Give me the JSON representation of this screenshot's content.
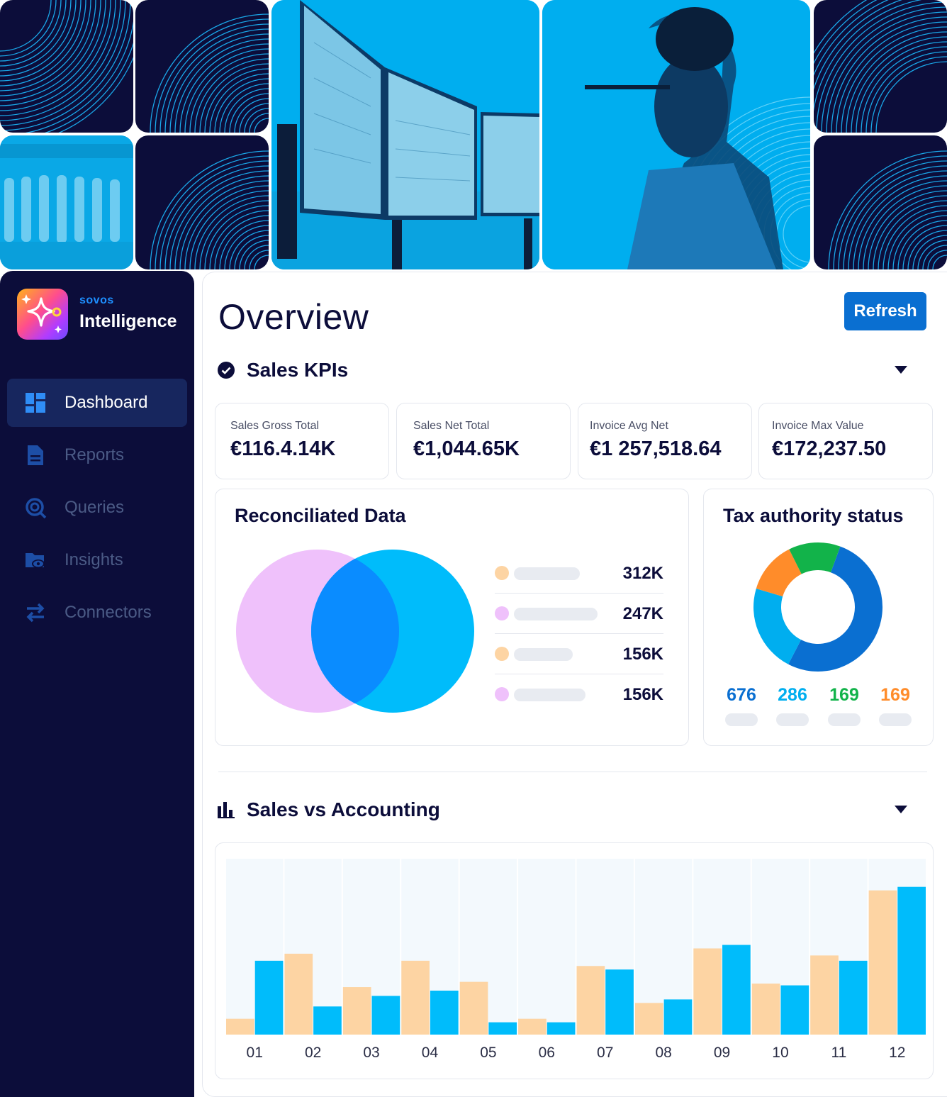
{
  "brand": {
    "small": "sovos",
    "name": "Intelligence"
  },
  "sidebar": {
    "items": [
      {
        "label": "Dashboard",
        "icon": "dashboard-icon",
        "active": true
      },
      {
        "label": "Reports",
        "icon": "document-icon",
        "active": false
      },
      {
        "label": "Queries",
        "icon": "search-icon",
        "active": false
      },
      {
        "label": "Insights",
        "icon": "folder-eye-icon",
        "active": false
      },
      {
        "label": "Connectors",
        "icon": "swap-arrows-icon",
        "active": false
      }
    ]
  },
  "header": {
    "title": "Overview",
    "refresh_label": "Refresh"
  },
  "sales_kpis": {
    "title": "Sales KPIs",
    "cards": [
      {
        "label": "Sales Gross Total",
        "value": "€116.4.14K"
      },
      {
        "label": "Sales Net Total",
        "value": "€1,044.65K"
      },
      {
        "label": "Invoice Avg Net",
        "value": "€1 257,518.64"
      },
      {
        "label": "Invoice Max Value",
        "value": "€172,237.50"
      }
    ]
  },
  "reconciliated": {
    "title": "Reconciliated Data",
    "legend": [
      {
        "color": "#fdd4a3",
        "value": "312K",
        "bar": 0.74
      },
      {
        "color": "#efc1fb",
        "value": "247K",
        "bar": 0.94
      },
      {
        "color": "#fdd4a3",
        "value": "156K",
        "bar": 0.66
      },
      {
        "color": "#efc1fb",
        "value": "156K",
        "bar": 0.8
      }
    ]
  },
  "tax_status": {
    "title": "Tax authority status",
    "values": [
      {
        "value": "676",
        "color": "#0a6fd1"
      },
      {
        "value": "286",
        "color": "#00aeef"
      },
      {
        "value": "169",
        "color": "#12b34a"
      },
      {
        "value": "169",
        "color": "#ff8c2a"
      }
    ]
  },
  "sales_vs_accounting": {
    "title": "Sales vs Accounting"
  },
  "colors": {
    "navy": "#0c0d3a",
    "accent": "#0a6fd1",
    "cyan": "#00aeef",
    "peach": "#fdd4a3",
    "lilac": "#efc1fb"
  },
  "chart_data": {
    "type": "bar",
    "categories": [
      "01",
      "02",
      "03",
      "04",
      "05",
      "06",
      "07",
      "08",
      "09",
      "10",
      "11",
      "12"
    ],
    "series": [
      {
        "values": [
          9,
          46,
          27,
          42,
          30,
          9,
          39,
          18,
          49,
          29,
          45,
          82
        ],
        "color": "#fdd4a3"
      },
      {
        "values": [
          42,
          16,
          22,
          25,
          7,
          7,
          37,
          20,
          51,
          28,
          42,
          84
        ],
        "color": "#00bcfb"
      }
    ],
    "ylim": [
      0,
      100
    ],
    "grid": false
  }
}
